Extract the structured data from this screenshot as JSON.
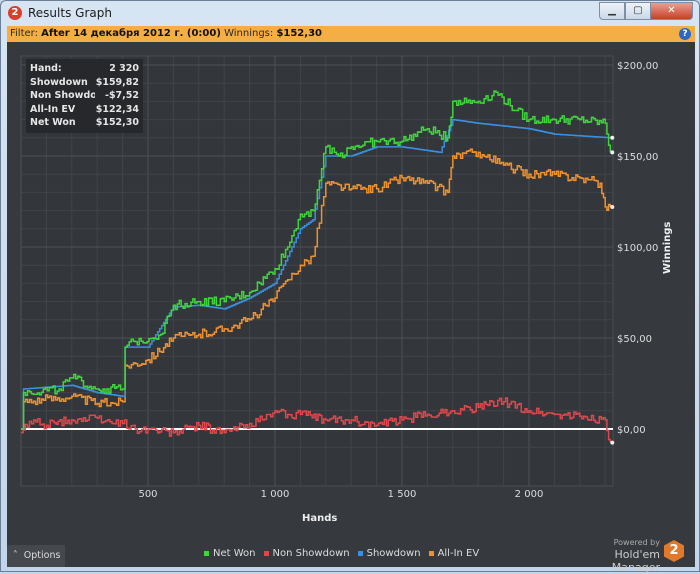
{
  "window": {
    "title": "Results Graph",
    "app_icon": "2",
    "buttons": {
      "minimize": "▁",
      "maximize": "▢",
      "close": "✕"
    }
  },
  "filter": {
    "label": "Filter:",
    "value": "After 14 декабря 2012 г. (0:00)",
    "winnings_label": "Winnings:",
    "winnings_value": "$152,30",
    "help": "?"
  },
  "info": [
    {
      "label": "Hand:",
      "value": "2 320"
    },
    {
      "label": "Showdown",
      "value": "$159,82"
    },
    {
      "label": "Non Showdown",
      "value": "-$7,52"
    },
    {
      "label": "All-In EV",
      "value": "$122,34"
    },
    {
      "label": "Net Won",
      "value": "$152,30"
    }
  ],
  "options_label": "Options",
  "powered_by": "Powered by",
  "brand": "Hold'em Manager",
  "brand_logo": "2",
  "chart_data": {
    "type": "line",
    "xlabel": "Hands",
    "ylabel": "Winnings",
    "xlim": [
      0,
      2320
    ],
    "ylim": [
      -15,
      215
    ],
    "xticks": [
      {
        "v": 500,
        "label": "500"
      },
      {
        "v": 1000,
        "label": "1 000"
      },
      {
        "v": 1500,
        "label": "1 500"
      },
      {
        "v": 2000,
        "label": "2 000"
      }
    ],
    "yticks": [
      {
        "v": 0,
        "label": "$0,00"
      },
      {
        "v": 50,
        "label": "$50,00"
      },
      {
        "v": 100,
        "label": "$100,00"
      },
      {
        "v": 150,
        "label": "$150,00"
      },
      {
        "v": 200,
        "label": "$200,00"
      }
    ],
    "legend_position": "bottom",
    "series": [
      {
        "name": "Non Showdown",
        "color": "#e0474c",
        "points": [
          [
            0,
            -2
          ],
          [
            50,
            5
          ],
          [
            100,
            2
          ],
          [
            200,
            5
          ],
          [
            300,
            6
          ],
          [
            350,
            4
          ],
          [
            400,
            3
          ],
          [
            450,
            0
          ],
          [
            500,
            0
          ],
          [
            600,
            -2
          ],
          [
            700,
            2
          ],
          [
            800,
            -2
          ],
          [
            900,
            3
          ],
          [
            950,
            5
          ],
          [
            1000,
            10
          ],
          [
            1050,
            8
          ],
          [
            1100,
            8
          ],
          [
            1200,
            5
          ],
          [
            1300,
            5
          ],
          [
            1400,
            2
          ],
          [
            1500,
            5
          ],
          [
            1600,
            8
          ],
          [
            1700,
            10
          ],
          [
            1800,
            12
          ],
          [
            1900,
            15
          ],
          [
            2000,
            10
          ],
          [
            2100,
            8
          ],
          [
            2200,
            7
          ],
          [
            2300,
            5
          ],
          [
            2320,
            -7.5
          ]
        ]
      },
      {
        "name": "All-In EV",
        "color": "#f0912e",
        "points": [
          [
            0,
            0
          ],
          [
            10,
            15
          ],
          [
            200,
            18
          ],
          [
            300,
            14
          ],
          [
            400,
            15
          ],
          [
            410,
            35
          ],
          [
            500,
            38
          ],
          [
            600,
            50
          ],
          [
            700,
            52
          ],
          [
            800,
            55
          ],
          [
            900,
            60
          ],
          [
            1000,
            72
          ],
          [
            1050,
            82
          ],
          [
            1100,
            90
          ],
          [
            1150,
            95
          ],
          [
            1200,
            135
          ],
          [
            1300,
            132
          ],
          [
            1400,
            132
          ],
          [
            1500,
            138
          ],
          [
            1600,
            135
          ],
          [
            1680,
            130
          ],
          [
            1700,
            150
          ],
          [
            1800,
            152
          ],
          [
            1900,
            145
          ],
          [
            2000,
            140
          ],
          [
            2100,
            140
          ],
          [
            2200,
            138
          ],
          [
            2280,
            135
          ],
          [
            2300,
            122
          ],
          [
            2320,
            122
          ]
        ]
      },
      {
        "name": "Showdown",
        "color": "#3a8fe0",
        "points": [
          [
            0,
            0
          ],
          [
            10,
            22
          ],
          [
            200,
            24
          ],
          [
            300,
            20
          ],
          [
            400,
            18
          ],
          [
            410,
            45
          ],
          [
            500,
            45
          ],
          [
            600,
            67
          ],
          [
            700,
            68
          ],
          [
            800,
            66
          ],
          [
            900,
            72
          ],
          [
            1000,
            80
          ],
          [
            1050,
            95
          ],
          [
            1100,
            110
          ],
          [
            1150,
            115
          ],
          [
            1200,
            150
          ],
          [
            1300,
            150
          ],
          [
            1400,
            155
          ],
          [
            1500,
            155
          ],
          [
            1650,
            152
          ],
          [
            1700,
            170
          ],
          [
            1800,
            168
          ],
          [
            2000,
            165
          ],
          [
            2100,
            162
          ],
          [
            2320,
            160
          ]
        ]
      },
      {
        "name": "Net Won",
        "color": "#3ed63a",
        "points": [
          [
            0,
            0
          ],
          [
            10,
            20
          ],
          [
            150,
            22
          ],
          [
            200,
            28
          ],
          [
            300,
            22
          ],
          [
            400,
            22
          ],
          [
            410,
            45
          ],
          [
            450,
            48
          ],
          [
            550,
            52
          ],
          [
            600,
            68
          ],
          [
            700,
            70
          ],
          [
            800,
            70
          ],
          [
            900,
            75
          ],
          [
            1000,
            88
          ],
          [
            1050,
            100
          ],
          [
            1100,
            118
          ],
          [
            1150,
            120
          ],
          [
            1200,
            155
          ],
          [
            1250,
            150
          ],
          [
            1300,
            155
          ],
          [
            1400,
            158
          ],
          [
            1500,
            158
          ],
          [
            1600,
            165
          ],
          [
            1680,
            160
          ],
          [
            1700,
            180
          ],
          [
            1800,
            180
          ],
          [
            1870,
            185
          ],
          [
            1950,
            175
          ],
          [
            2000,
            170
          ],
          [
            2100,
            170
          ],
          [
            2200,
            170
          ],
          [
            2300,
            168
          ],
          [
            2320,
            152
          ]
        ]
      }
    ],
    "legend_order": [
      "Net Won",
      "Non Showdown",
      "Showdown",
      "All-In EV"
    ]
  }
}
